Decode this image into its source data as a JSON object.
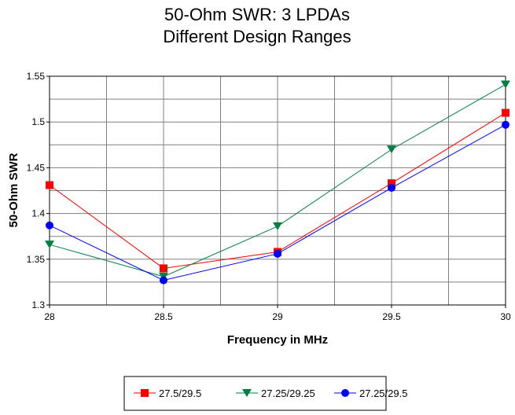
{
  "chart_data": {
    "type": "line",
    "title": [
      "50-Ohm SWR: 3 LPDAs",
      "Different Design Ranges"
    ],
    "xlabel": "Frequency in MHz",
    "ylabel": "50-Ohm SWR",
    "x": [
      28,
      28.5,
      29,
      29.5,
      30
    ],
    "xlim": [
      28,
      30
    ],
    "ylim": [
      1.3,
      1.55
    ],
    "xticks": [
      "28",
      "28.5",
      "29",
      "29.5",
      "30"
    ],
    "yticks": [
      "1.3",
      "1.35",
      "1.4",
      "1.45",
      "1.5",
      "1.55"
    ],
    "grid": true,
    "legend": "bottom",
    "series": [
      {
        "name": "27.5/29.5",
        "color": "#ff0000",
        "marker": "square",
        "values": [
          1.431,
          1.34,
          1.358,
          1.433,
          1.51
        ]
      },
      {
        "name": "27.25/29.25",
        "color": "#008040",
        "marker": "triangle-down",
        "values": [
          1.366,
          1.331,
          1.386,
          1.47,
          1.541
        ]
      },
      {
        "name": "27.25/29.5",
        "color": "#0000ff",
        "marker": "circle",
        "values": [
          1.387,
          1.327,
          1.356,
          1.428,
          1.497
        ]
      }
    ]
  }
}
